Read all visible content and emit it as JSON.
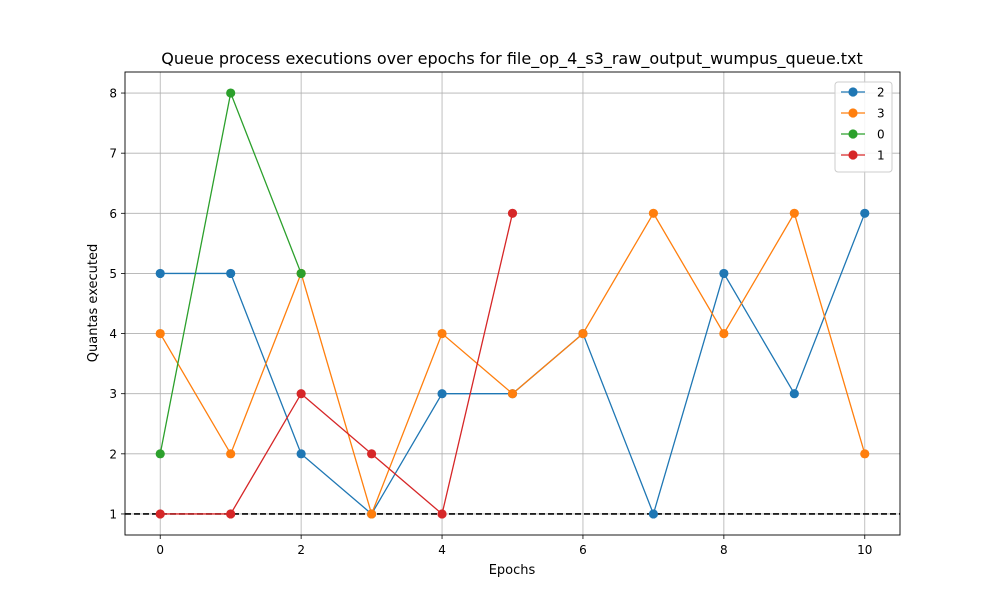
{
  "chart_data": {
    "type": "line",
    "title": "Queue process executions over epochs for file_op_4_s3_raw_output_wumpus_queue.txt",
    "xlabel": "Epochs",
    "ylabel": "Quantas executed",
    "xlim": [
      -0.5,
      10.5
    ],
    "ylim": [
      0.65,
      8.35
    ],
    "xticks": [
      0,
      2,
      4,
      6,
      8,
      10
    ],
    "yticks": [
      1,
      2,
      3,
      4,
      5,
      6,
      7,
      8
    ],
    "grid": true,
    "legend_position": "top-right",
    "reference_line": {
      "y": 1,
      "style": "dashed",
      "color": "#000000"
    },
    "series": [
      {
        "name": "2",
        "color": "#1f77b4",
        "x": [
          0,
          1,
          2,
          3,
          4,
          5,
          6,
          7,
          8,
          9,
          10
        ],
        "y": [
          5,
          5,
          2,
          1,
          3,
          3,
          4,
          1,
          5,
          3,
          6
        ]
      },
      {
        "name": "3",
        "color": "#ff7f0e",
        "x": [
          0,
          1,
          2,
          3,
          4,
          5,
          6,
          7,
          8,
          9,
          10
        ],
        "y": [
          4,
          2,
          5,
          1,
          4,
          3,
          4,
          6,
          4,
          6,
          2
        ]
      },
      {
        "name": "0",
        "color": "#2ca02c",
        "x": [
          0,
          1,
          2
        ],
        "y": [
          2,
          8,
          5
        ]
      },
      {
        "name": "1",
        "color": "#d62728",
        "x": [
          0,
          1,
          2,
          3,
          4,
          5
        ],
        "y": [
          1,
          1,
          3,
          2,
          1,
          6
        ]
      }
    ]
  }
}
